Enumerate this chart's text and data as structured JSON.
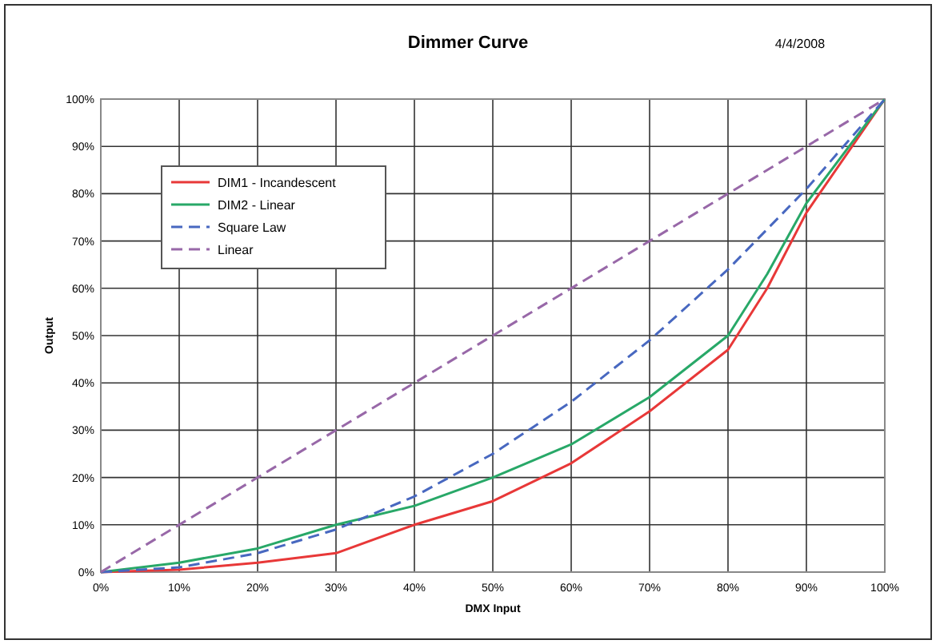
{
  "chart_data": {
    "type": "line",
    "title": "Dimmer Curve",
    "subtitle": "4/4/2008",
    "xlabel": "DMX Input",
    "ylabel": "Output",
    "x": [
      0,
      10,
      20,
      30,
      40,
      50,
      60,
      70,
      80,
      85,
      90,
      100
    ],
    "series": [
      {
        "name": "DIM1 - Incandescent",
        "color": "#e83838",
        "values": [
          0,
          0.5,
          2,
          4,
          10,
          15,
          23,
          34,
          47,
          60,
          76,
          100
        ],
        "line_style": "solid"
      },
      {
        "name": "DIM2 - Linear",
        "color": "#28a868",
        "values": [
          0,
          2,
          5,
          10,
          14,
          20,
          27,
          37,
          50,
          63,
          78,
          100
        ],
        "line_style": "solid"
      },
      {
        "name": "Square Law",
        "color": "#4868c0",
        "x": [
          0,
          10,
          20,
          30,
          40,
          50,
          60,
          70,
          80,
          90,
          100
        ],
        "values": [
          0,
          1,
          4,
          9,
          16,
          25,
          36,
          49,
          64,
          81,
          100
        ],
        "line_style": "dashed"
      },
      {
        "name": "Linear",
        "color": "#9868a8",
        "x": [
          0,
          100
        ],
        "values": [
          0,
          100
        ],
        "line_style": "dashed"
      }
    ],
    "xlim": [
      0,
      100
    ],
    "ylim": [
      0,
      100
    ],
    "xticks": [
      {
        "value": 0,
        "label": "0%"
      },
      {
        "value": 10,
        "label": "10%"
      },
      {
        "value": 20,
        "label": "20%"
      },
      {
        "value": 30,
        "label": "30%"
      },
      {
        "value": 40,
        "label": "40%"
      },
      {
        "value": 50,
        "label": "50%"
      },
      {
        "value": 60,
        "label": "60%"
      },
      {
        "value": 70,
        "label": "70%"
      },
      {
        "value": 80,
        "label": "80%"
      },
      {
        "value": 90,
        "label": "90%"
      },
      {
        "value": 100,
        "label": "100%"
      }
    ],
    "yticks": [
      {
        "value": 0,
        "label": "0%"
      },
      {
        "value": 10,
        "label": "10%"
      },
      {
        "value": 20,
        "label": "20%"
      },
      {
        "value": 30,
        "label": "30%"
      },
      {
        "value": 40,
        "label": "40%"
      },
      {
        "value": 50,
        "label": "50%"
      },
      {
        "value": 60,
        "label": "60%"
      },
      {
        "value": 70,
        "label": "70%"
      },
      {
        "value": 80,
        "label": "80%"
      },
      {
        "value": 90,
        "label": "90%"
      },
      {
        "value": 100,
        "label": "100%"
      }
    ],
    "grid": true,
    "legend": "top left",
    "marker": "none"
  }
}
